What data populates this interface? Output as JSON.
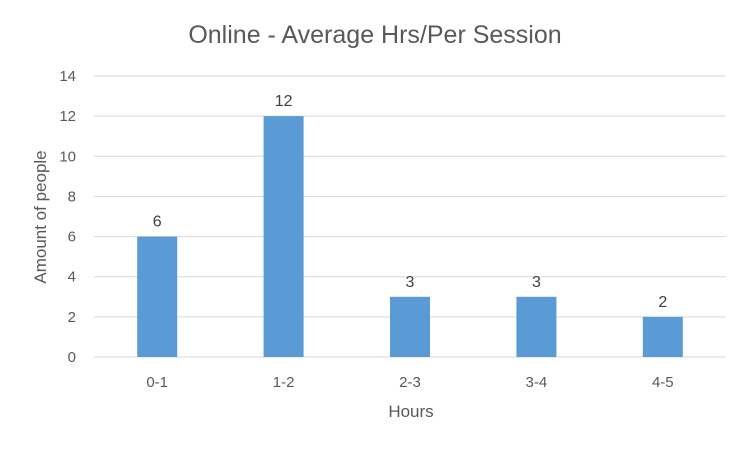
{
  "chart_data": {
    "type": "bar",
    "title": "Online - Average Hrs/Per Session",
    "xlabel": "Hours",
    "ylabel": "Amount of people",
    "categories": [
      "0-1",
      "1-2",
      "2-3",
      "3-4",
      "4-5"
    ],
    "values": [
      6,
      12,
      3,
      3,
      2
    ],
    "ylim": [
      0,
      14
    ],
    "yticks": [
      0,
      2,
      4,
      6,
      8,
      10,
      12,
      14
    ],
    "grid": true,
    "legend": "none",
    "bar_color": "#5b9bd5"
  }
}
